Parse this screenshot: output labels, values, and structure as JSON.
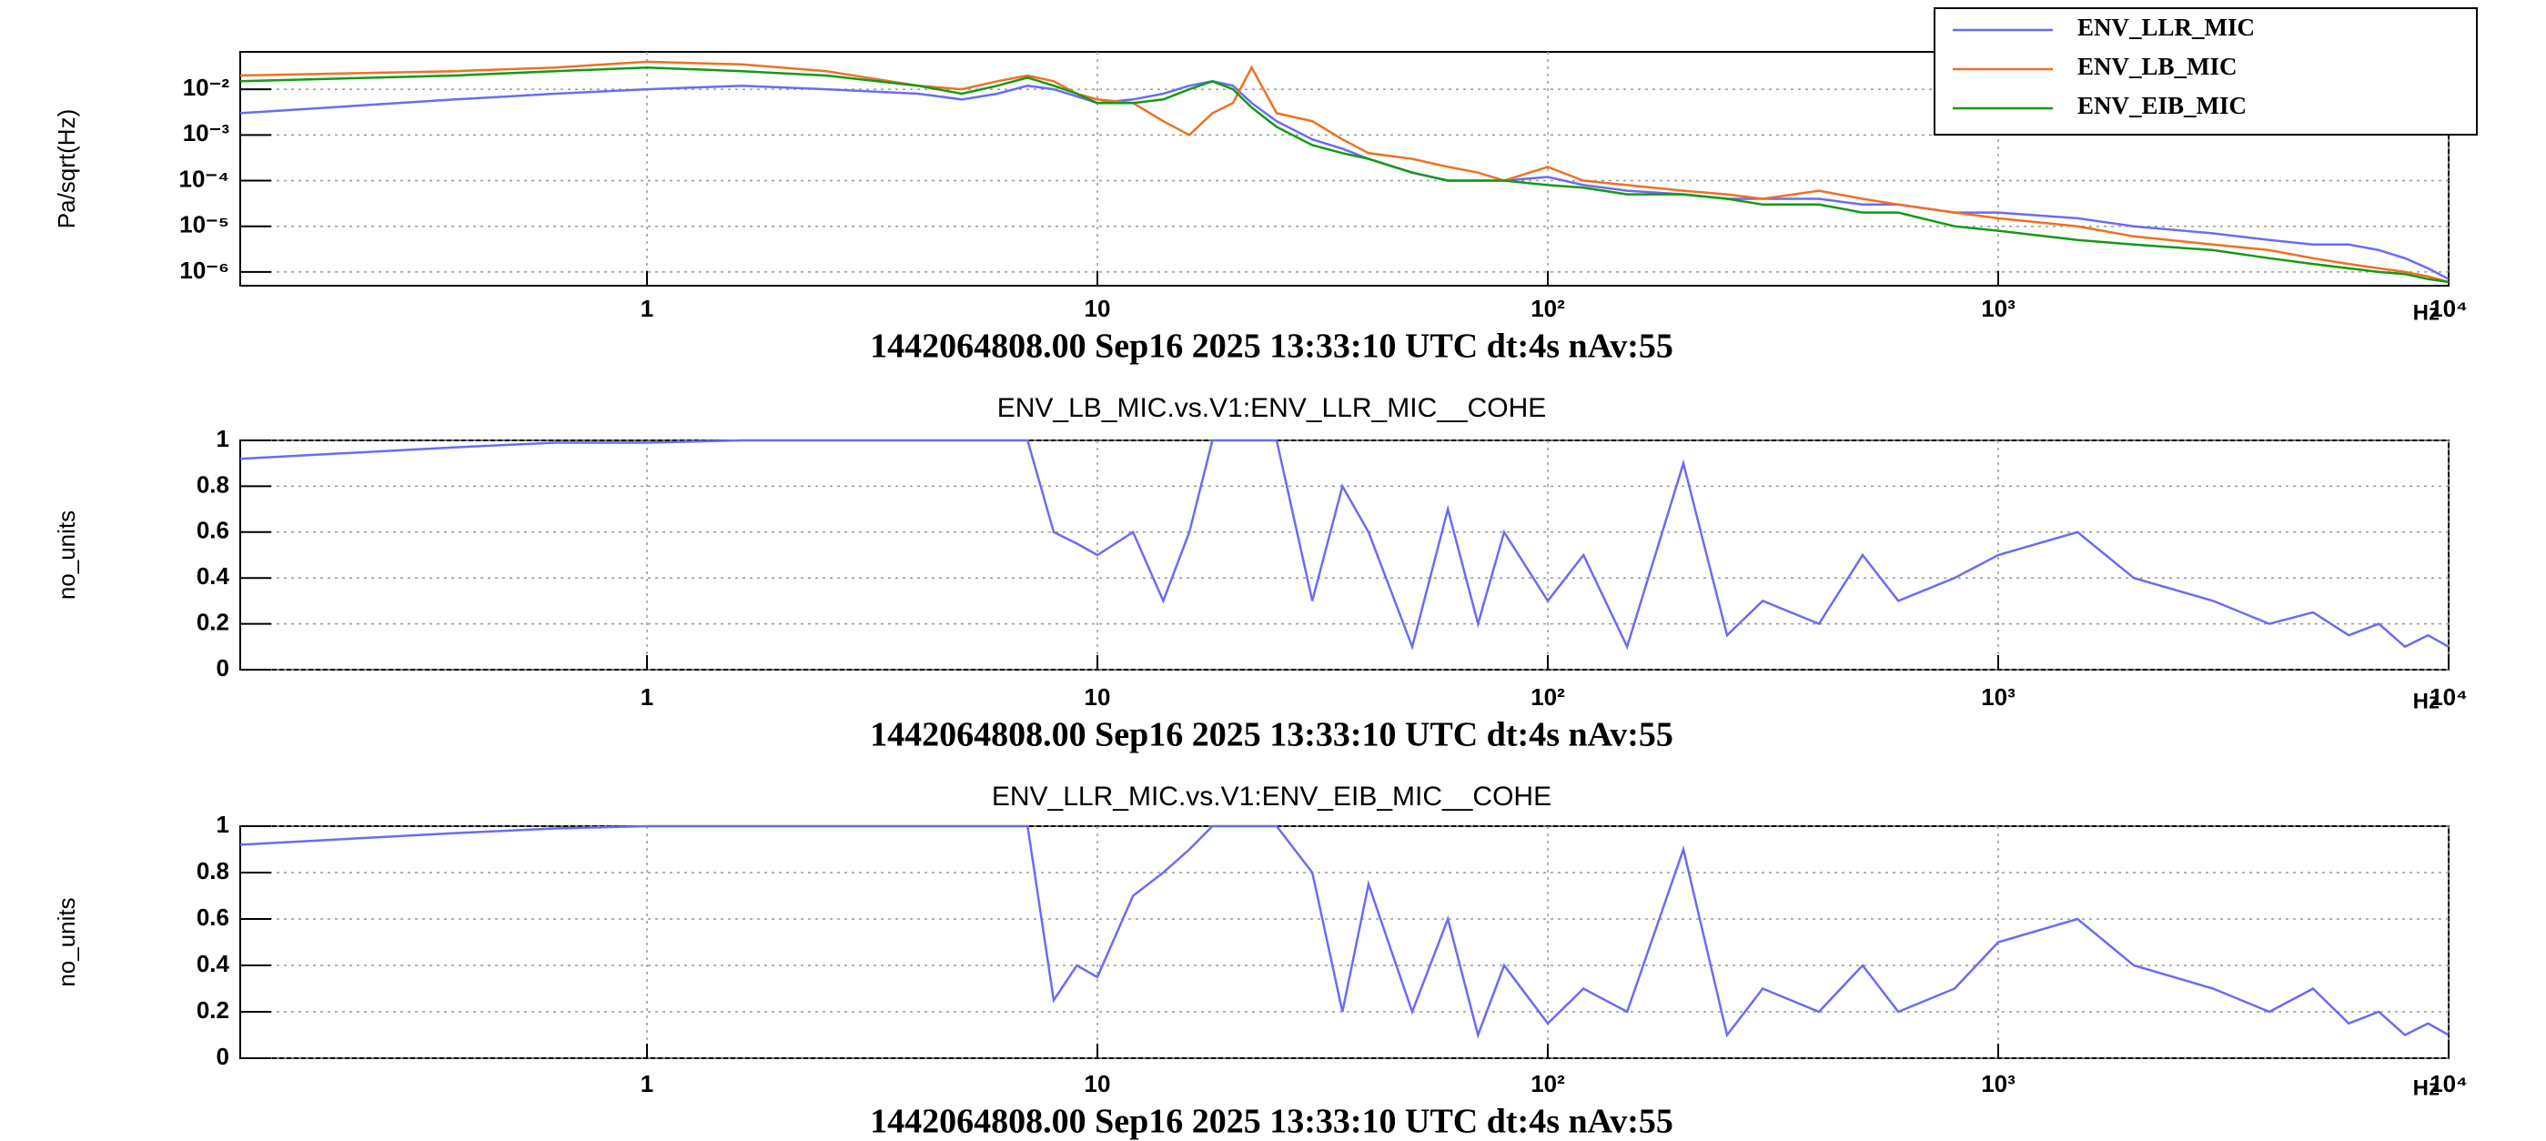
{
  "chart_data": [
    {
      "type": "line",
      "ylabel": "Pa/sqrt(Hz)",
      "xlabel": "1442064808.00 Sep16 2025 13:33:10 UTC dt:4s nAv:55",
      "xunit": "Hz",
      "xlog": true,
      "ylog": true,
      "grid": true,
      "legend": "top-right",
      "xlim": [
        0.125,
        10000
      ],
      "ylim": [
        5e-07,
        0.066
      ],
      "xticks": [
        1,
        10,
        {
          "value": 100,
          "label": "10²"
        },
        {
          "value": 1000,
          "label": "10³"
        },
        {
          "value": 10000,
          "label": "10⁴"
        }
      ],
      "yticks": [
        {
          "value": 1e-06,
          "label": "10⁻⁶"
        },
        {
          "value": 1e-05,
          "label": "10⁻⁵"
        },
        {
          "value": 0.0001,
          "label": "10⁻⁴"
        },
        {
          "value": 0.001,
          "label": "10⁻³"
        },
        {
          "value": 0.01,
          "label": "10⁻²"
        }
      ],
      "x": [
        0.125,
        0.375,
        0.625,
        1,
        1.625,
        2.5,
        4,
        5,
        6,
        7,
        8,
        9,
        10,
        12,
        14,
        16,
        18,
        20,
        22,
        25,
        30,
        35,
        40,
        50,
        60,
        70,
        80,
        100,
        120,
        150,
        200,
        250,
        300,
        400,
        500,
        600,
        800,
        1000,
        1500,
        2000,
        3000,
        4000,
        5000,
        6000,
        7000,
        8000,
        9000,
        10000
      ],
      "series": [
        {
          "name": "ENV_LLR_MIC",
          "color": "#6b6bf5",
          "values": [
            0.003,
            0.006,
            0.008,
            0.01,
            0.012,
            0.01,
            0.008,
            0.006,
            0.008,
            0.012,
            0.01,
            0.007,
            0.005,
            0.006,
            0.008,
            0.012,
            0.015,
            0.012,
            0.005,
            0.002,
            0.0008,
            0.0005,
            0.0003,
            0.00015,
            0.0001,
            0.0001,
            0.0001,
            0.00012,
            8e-05,
            6e-05,
            5e-05,
            4e-05,
            4e-05,
            4e-05,
            3e-05,
            3e-05,
            2e-05,
            2e-05,
            1.5e-05,
            1e-05,
            7e-06,
            5e-06,
            4e-06,
            4e-06,
            3e-06,
            2e-06,
            1.2e-06,
            7e-07
          ]
        },
        {
          "name": "ENV_LB_MIC",
          "color": "#f07020",
          "values": [
            0.02,
            0.025,
            0.03,
            0.04,
            0.035,
            0.025,
            0.012,
            0.01,
            0.015,
            0.02,
            0.015,
            0.008,
            0.006,
            0.005,
            0.002,
            0.001,
            0.003,
            0.005,
            0.03,
            0.003,
            0.002,
            0.0008,
            0.0004,
            0.0003,
            0.0002,
            0.00015,
            0.0001,
            0.0002,
            0.0001,
            8e-05,
            6e-05,
            5e-05,
            4e-05,
            6e-05,
            4e-05,
            3e-05,
            2e-05,
            1.5e-05,
            1e-05,
            6e-06,
            4e-06,
            3e-06,
            2e-06,
            1.5e-06,
            1.2e-06,
            1e-06,
            8e-07,
            6e-07
          ]
        },
        {
          "name": "ENV_EIB_MIC",
          "color": "#139a13",
          "values": [
            0.015,
            0.02,
            0.025,
            0.03,
            0.025,
            0.02,
            0.012,
            0.008,
            0.012,
            0.018,
            0.012,
            0.008,
            0.005,
            0.005,
            0.006,
            0.01,
            0.015,
            0.01,
            0.004,
            0.0015,
            0.0006,
            0.0004,
            0.0003,
            0.00015,
            0.0001,
            0.0001,
            0.0001,
            8e-05,
            7e-05,
            5e-05,
            5e-05,
            4e-05,
            3e-05,
            3e-05,
            2e-05,
            2e-05,
            1e-05,
            8e-06,
            5e-06,
            4e-06,
            3e-06,
            2e-06,
            1.5e-06,
            1.2e-06,
            1e-06,
            9e-07,
            7e-07,
            6e-07
          ]
        }
      ]
    },
    {
      "type": "line",
      "title": "ENV_LB_MIC.vs.V1:ENV_LLR_MIC__COHE",
      "ylabel": "no_units",
      "xlabel": "1442064808.00 Sep16 2025 13:33:10 UTC dt:4s nAv:55",
      "xunit": "Hz",
      "xlog": true,
      "ylog": false,
      "grid": true,
      "xlim": [
        0.125,
        10000
      ],
      "ylim": [
        0,
        1
      ],
      "xticks": [
        1,
        10,
        {
          "value": 100,
          "label": "10²"
        },
        {
          "value": 1000,
          "label": "10³"
        },
        {
          "value": 10000,
          "label": "10⁴"
        }
      ],
      "yticks": [
        0,
        0.2,
        0.4,
        0.6,
        0.8,
        1
      ],
      "x": [
        0.125,
        0.375,
        0.625,
        1,
        1.625,
        2.5,
        4,
        5,
        6,
        7,
        8,
        9,
        10,
        12,
        14,
        16,
        18,
        20,
        22,
        25,
        30,
        35,
        40,
        50,
        60,
        70,
        80,
        100,
        120,
        150,
        200,
        250,
        300,
        400,
        500,
        600,
        800,
        1000,
        1500,
        2000,
        3000,
        4000,
        5000,
        6000,
        7000,
        8000,
        9000,
        10000
      ],
      "color": "#6b6bf5",
      "values": [
        0.92,
        0.97,
        0.99,
        0.99,
        1,
        1,
        1,
        1,
        1,
        1,
        0.6,
        0.55,
        0.5,
        0.6,
        0.3,
        0.6,
        1,
        1,
        1,
        1,
        0.3,
        0.8,
        0.6,
        0.1,
        0.7,
        0.2,
        0.6,
        0.3,
        0.5,
        0.1,
        0.9,
        0.15,
        0.3,
        0.2,
        0.5,
        0.3,
        0.4,
        0.5,
        0.6,
        0.4,
        0.3,
        0.2,
        0.25,
        0.15,
        0.2,
        0.1,
        0.15,
        0.1
      ]
    },
    {
      "type": "line",
      "title": "ENV_LLR_MIC.vs.V1:ENV_EIB_MIC__COHE",
      "ylabel": "no_units",
      "xlabel": "1442064808.00 Sep16 2025 13:33:10 UTC dt:4s nAv:55",
      "xunit": "Hz",
      "xlog": true,
      "ylog": false,
      "grid": true,
      "xlim": [
        0.125,
        10000
      ],
      "ylim": [
        0,
        1
      ],
      "xticks": [
        1,
        10,
        {
          "value": 100,
          "label": "10²"
        },
        {
          "value": 1000,
          "label": "10³"
        },
        {
          "value": 10000,
          "label": "10⁴"
        }
      ],
      "yticks": [
        0,
        0.2,
        0.4,
        0.6,
        0.8,
        1
      ],
      "x": [
        0.125,
        0.375,
        0.625,
        1,
        1.625,
        2.5,
        4,
        5,
        6,
        7,
        8,
        9,
        10,
        12,
        14,
        16,
        18,
        20,
        22,
        25,
        30,
        35,
        40,
        50,
        60,
        70,
        80,
        100,
        120,
        150,
        200,
        250,
        300,
        400,
        500,
        600,
        800,
        1000,
        1500,
        2000,
        3000,
        4000,
        5000,
        6000,
        7000,
        8000,
        9000,
        10000
      ],
      "color": "#6b6bf5",
      "values": [
        0.92,
        0.97,
        0.99,
        1,
        1,
        1,
        1,
        1,
        1,
        1,
        0.25,
        0.4,
        0.35,
        0.7,
        0.8,
        0.9,
        1,
        1,
        1,
        1,
        0.8,
        0.2,
        0.75,
        0.2,
        0.6,
        0.1,
        0.4,
        0.15,
        0.3,
        0.2,
        0.9,
        0.1,
        0.3,
        0.2,
        0.4,
        0.2,
        0.3,
        0.5,
        0.6,
        0.4,
        0.3,
        0.2,
        0.3,
        0.15,
        0.2,
        0.1,
        0.15,
        0.1
      ]
    }
  ]
}
